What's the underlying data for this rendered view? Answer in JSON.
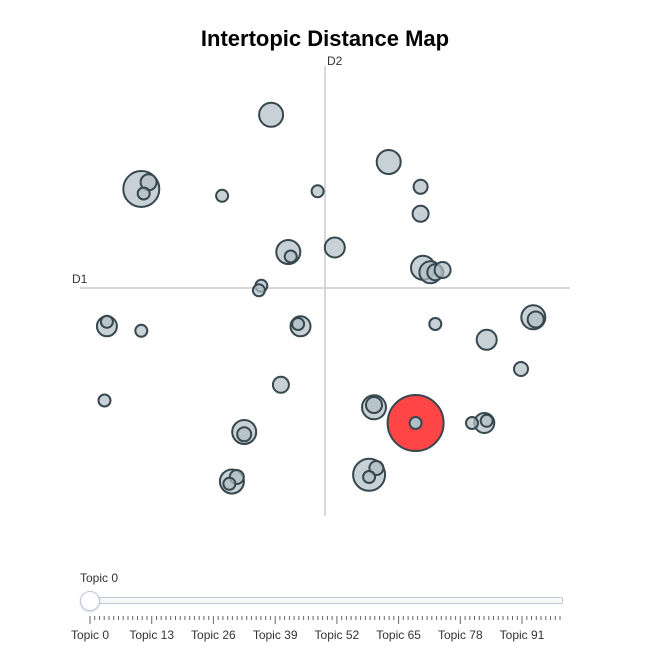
{
  "chart_data": {
    "type": "scatter",
    "title": "Intertopic Distance Map",
    "xlabel": "D1",
    "ylabel": "D2",
    "xlim": [
      -10,
      10
    ],
    "ylim": [
      -10,
      10
    ],
    "grid": false,
    "highlight_color": "#ff3b3b",
    "bubble_fill": "#b0bec5",
    "bubble_stroke": "#37474f",
    "points": [
      {
        "x": -2.2,
        "y": 7.7,
        "size": 12
      },
      {
        "x": 2.6,
        "y": 5.6,
        "size": 12
      },
      {
        "x": -7.5,
        "y": 4.4,
        "size": 18
      },
      {
        "x": -7.2,
        "y": 4.7,
        "size": 8
      },
      {
        "x": -7.4,
        "y": 4.2,
        "size": 6
      },
      {
        "x": -4.2,
        "y": 4.1,
        "size": 6
      },
      {
        "x": -0.3,
        "y": 4.3,
        "size": 6
      },
      {
        "x": 3.9,
        "y": 4.5,
        "size": 7
      },
      {
        "x": 3.9,
        "y": 3.3,
        "size": 8
      },
      {
        "x": -1.5,
        "y": 1.6,
        "size": 12
      },
      {
        "x": -1.4,
        "y": 1.4,
        "size": 6
      },
      {
        "x": 0.4,
        "y": 1.8,
        "size": 10
      },
      {
        "x": 4.0,
        "y": 0.9,
        "size": 12
      },
      {
        "x": 4.3,
        "y": 0.7,
        "size": 11
      },
      {
        "x": 4.5,
        "y": 0.7,
        "size": 8
      },
      {
        "x": 4.8,
        "y": 0.8,
        "size": 8
      },
      {
        "x": -2.6,
        "y": 0.1,
        "size": 6
      },
      {
        "x": -2.7,
        "y": -0.1,
        "size": 6
      },
      {
        "x": -8.9,
        "y": -1.7,
        "size": 10
      },
      {
        "x": -8.9,
        "y": -1.5,
        "size": 6
      },
      {
        "x": -7.5,
        "y": -1.9,
        "size": 6
      },
      {
        "x": -1.0,
        "y": -1.7,
        "size": 10
      },
      {
        "x": -1.1,
        "y": -1.6,
        "size": 6
      },
      {
        "x": 4.5,
        "y": -1.6,
        "size": 6
      },
      {
        "x": 6.6,
        "y": -2.3,
        "size": 10
      },
      {
        "x": 8.5,
        "y": -1.3,
        "size": 12
      },
      {
        "x": 8.6,
        "y": -1.4,
        "size": 8
      },
      {
        "x": 8.0,
        "y": -3.6,
        "size": 7
      },
      {
        "x": -1.8,
        "y": -4.3,
        "size": 8
      },
      {
        "x": -9.0,
        "y": -5.0,
        "size": 6
      },
      {
        "x": 2.0,
        "y": -5.3,
        "size": 12
      },
      {
        "x": 2.0,
        "y": -5.2,
        "size": 8
      },
      {
        "x": 3.7,
        "y": -6.0,
        "size": 28,
        "highlight": true
      },
      {
        "x": 6.5,
        "y": -6.0,
        "size": 10
      },
      {
        "x": 6.0,
        "y": -6.0,
        "size": 6
      },
      {
        "x": 6.6,
        "y": -5.9,
        "size": 6
      },
      {
        "x": -3.3,
        "y": -6.4,
        "size": 12
      },
      {
        "x": -3.3,
        "y": -6.5,
        "size": 7
      },
      {
        "x": 1.8,
        "y": -8.3,
        "size": 16
      },
      {
        "x": 2.1,
        "y": -8.0,
        "size": 7
      },
      {
        "x": 1.8,
        "y": -8.4,
        "size": 6
      },
      {
        "x": -3.8,
        "y": -8.6,
        "size": 12
      },
      {
        "x": -3.6,
        "y": -8.4,
        "size": 7
      },
      {
        "x": -3.9,
        "y": -8.7,
        "size": 6
      }
    ]
  },
  "slider": {
    "current_label": "Topic 0",
    "value": 0,
    "min": 0,
    "max": 99,
    "tick_labels": [
      "Topic 0",
      "Topic 13",
      "Topic 26",
      "Topic 39",
      "Topic 52",
      "Topic 65",
      "Topic 78",
      "Topic 91"
    ],
    "tick_values": [
      0,
      13,
      26,
      39,
      52,
      65,
      78,
      91
    ]
  }
}
